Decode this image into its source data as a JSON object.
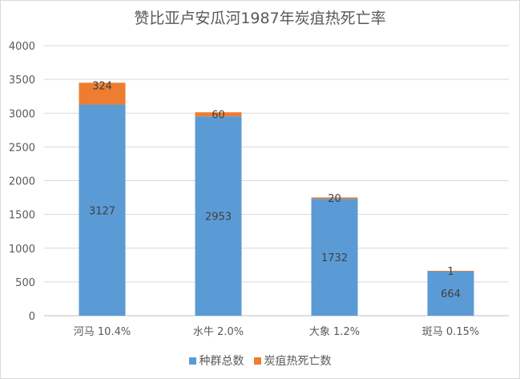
{
  "chart_data": {
    "type": "bar",
    "stacked": true,
    "title": "赞比亚卢安瓜河1987年炭疽热死亡率",
    "categories": [
      "河马 10.4%",
      "水牛 2.0%",
      "大象 1.2%",
      "斑马 0.15%"
    ],
    "series": [
      {
        "name": "种群总数",
        "color": "#5b9bd5",
        "values": [
          3127,
          2953,
          1732,
          664
        ]
      },
      {
        "name": "炭疽热死亡数",
        "color": "#ed7d31",
        "values": [
          324,
          60,
          20,
          1
        ]
      }
    ],
    "ylim": [
      0,
      4000
    ],
    "yticks": [
      "0",
      "500",
      "1000",
      "1500",
      "2000",
      "2500",
      "3000",
      "3500",
      "4000"
    ],
    "ytick_values": [
      0,
      500,
      1000,
      1500,
      2000,
      2500,
      3000,
      3500,
      4000
    ],
    "grid": true,
    "legend_position": "bottom"
  }
}
